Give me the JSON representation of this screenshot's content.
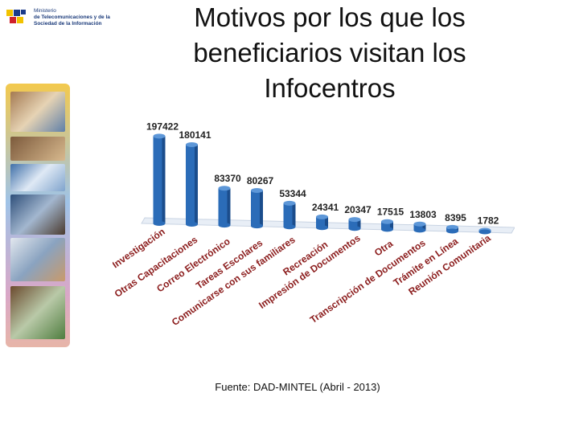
{
  "header": {
    "logo_text_line1": "Ministerio",
    "logo_text_line2": "de Telecomunicaciones y de la",
    "logo_text_line3": "Sociedad de la Información"
  },
  "title": "Motivos por los que los beneficiarios visitan los Infocentros",
  "source": "Fuente: DAD-MINTEL (Abril - 2013)",
  "colors": {
    "bar": "#2b6cb8",
    "bar_dark": "#1b4d8c",
    "bar_light": "#5d97d8",
    "label": "#8b1c1c"
  },
  "chart_data": {
    "type": "bar",
    "categories": [
      "Investigación",
      "Otras Capacitaciones",
      "Correo Electrónico",
      "Tareas Escolares",
      "Comunicarse con sus familiares",
      "Recreación",
      "Impresión de Documentos",
      "Otra",
      "Transcripción de Documentos",
      "Trámite en Línea",
      "Reunión Comunitaria"
    ],
    "values": [
      197422,
      180141,
      83370,
      80267,
      53344,
      24341,
      20347,
      17515,
      13803,
      8395,
      1782
    ],
    "value_labels": [
      "197422",
      "180141",
      "83370",
      "80267",
      "53344",
      "24341",
      "20347",
      "17515",
      "13803",
      "8395",
      "1782"
    ],
    "title": "",
    "xlabel": "",
    "ylabel": "",
    "ylim": [
      0,
      200000
    ],
    "grid": false
  }
}
